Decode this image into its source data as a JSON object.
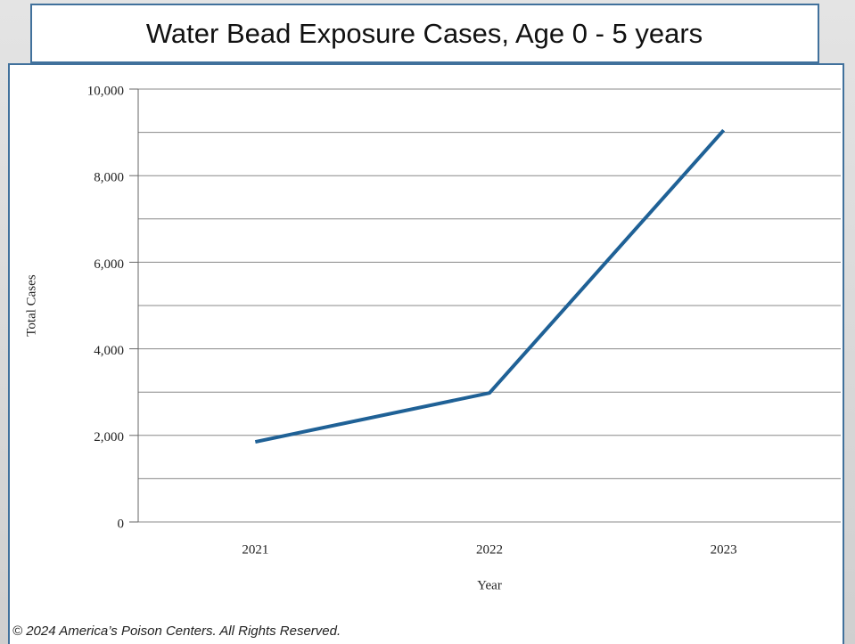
{
  "chart_data": {
    "type": "line",
    "title": "Water Bead Exposure Cases, Age  0 - 5 years",
    "x_label": "Year",
    "y_label": "Total Cases",
    "footer": "© 2024 America’s Poison Centers. All Rights Reserved.",
    "categories": [
      "2021",
      "2022",
      "2023"
    ],
    "series": [
      {
        "name": "Total Cases",
        "color": "#1f6196",
        "values": [
          1850,
          2980,
          9050
        ]
      }
    ],
    "ylim": [
      0,
      10000
    ],
    "yticks": [
      0,
      {
        "value": 2000,
        "label": "2,000"
      },
      {
        "value": 4000,
        "label": "4,000"
      },
      {
        "value": 6000,
        "label": "6,000"
      },
      {
        "value": 8000,
        "label": "8,000"
      },
      {
        "value": 10000,
        "label": "10,000"
      }
    ],
    "minor_yticks": [
      1000,
      3000,
      5000,
      7000,
      9000
    ],
    "grid": true
  }
}
